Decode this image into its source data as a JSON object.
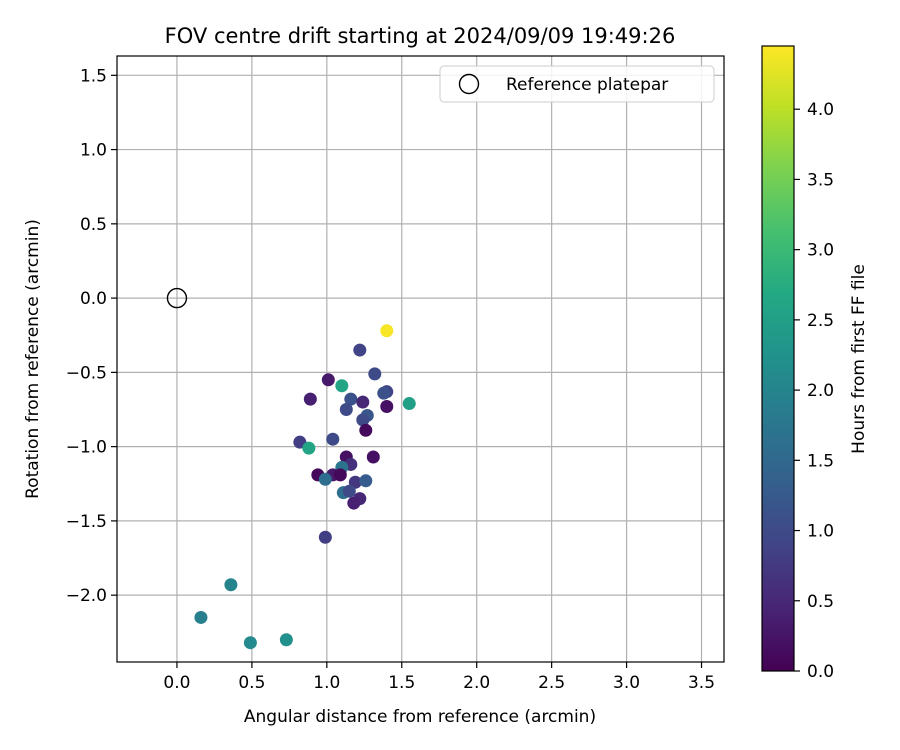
{
  "chart_data": {
    "type": "scatter",
    "title": "FOV centre drift starting at 2024/09/09 19:49:26",
    "xlabel": "Angular distance from reference (arcmin)",
    "ylabel": "Rotation from reference (arcmin)",
    "xlim": [
      -0.4,
      3.65
    ],
    "ylim": [
      -2.45,
      1.63
    ],
    "xticks": [
      0.0,
      0.5,
      1.0,
      1.5,
      2.0,
      2.5,
      3.0,
      3.5
    ],
    "yticks": [
      -2.0,
      -1.5,
      -1.0,
      -0.5,
      0.0,
      0.5,
      1.0,
      1.5
    ],
    "grid": true,
    "legend": {
      "placement": "top-right",
      "entries": [
        "Reference platepar"
      ]
    },
    "reference_point": {
      "x": 0.0,
      "y": 0.0
    },
    "colorbar": {
      "label": "Hours from first FF file",
      "colormap": "viridis",
      "range": [
        0.0,
        4.45
      ],
      "ticks": [
        0.0,
        0.5,
        1.0,
        1.5,
        2.0,
        2.5,
        3.0,
        3.5,
        4.0
      ]
    },
    "points": [
      {
        "x": 1.4,
        "y": -0.22,
        "hours": 4.4
      },
      {
        "x": 1.22,
        "y": -0.35,
        "hours": 0.9
      },
      {
        "x": 1.32,
        "y": -0.51,
        "hours": 1.0
      },
      {
        "x": 1.01,
        "y": -0.55,
        "hours": 0.3
      },
      {
        "x": 1.1,
        "y": -0.59,
        "hours": 2.6
      },
      {
        "x": 1.4,
        "y": -0.63,
        "hours": 0.9
      },
      {
        "x": 1.38,
        "y": -0.64,
        "hours": 1.1
      },
      {
        "x": 0.89,
        "y": -0.68,
        "hours": 0.4
      },
      {
        "x": 1.16,
        "y": -0.68,
        "hours": 1.1
      },
      {
        "x": 1.24,
        "y": -0.7,
        "hours": 0.5
      },
      {
        "x": 1.55,
        "y": -0.71,
        "hours": 2.5
      },
      {
        "x": 1.4,
        "y": -0.73,
        "hours": 0.2
      },
      {
        "x": 1.13,
        "y": -0.75,
        "hours": 1.0
      },
      {
        "x": 1.27,
        "y": -0.79,
        "hours": 1.2
      },
      {
        "x": 1.24,
        "y": -0.82,
        "hours": 1.0
      },
      {
        "x": 1.26,
        "y": -0.89,
        "hours": 0.1
      },
      {
        "x": 1.04,
        "y": -0.95,
        "hours": 1.0
      },
      {
        "x": 0.82,
        "y": -0.97,
        "hours": 0.8
      },
      {
        "x": 0.88,
        "y": -1.01,
        "hours": 2.6
      },
      {
        "x": 1.13,
        "y": -1.07,
        "hours": 0.2
      },
      {
        "x": 1.31,
        "y": -1.07,
        "hours": 0.2
      },
      {
        "x": 1.16,
        "y": -1.12,
        "hours": 0.6
      },
      {
        "x": 1.1,
        "y": -1.14,
        "hours": 1.7
      },
      {
        "x": 0.94,
        "y": -1.19,
        "hours": 0.1
      },
      {
        "x": 1.04,
        "y": -1.19,
        "hours": 0.3
      },
      {
        "x": 1.09,
        "y": -1.19,
        "hours": 0.1
      },
      {
        "x": 0.99,
        "y": -1.22,
        "hours": 1.6
      },
      {
        "x": 1.19,
        "y": -1.24,
        "hours": 0.7
      },
      {
        "x": 1.26,
        "y": -1.23,
        "hours": 1.3
      },
      {
        "x": 1.11,
        "y": -1.31,
        "hours": 1.6
      },
      {
        "x": 1.15,
        "y": -1.3,
        "hours": 1.0
      },
      {
        "x": 1.22,
        "y": -1.35,
        "hours": 0.5
      },
      {
        "x": 1.18,
        "y": -1.38,
        "hours": 0.4
      },
      {
        "x": 0.99,
        "y": -1.61,
        "hours": 0.8
      },
      {
        "x": 0.36,
        "y": -1.93,
        "hours": 2.0
      },
      {
        "x": 0.16,
        "y": -2.15,
        "hours": 1.9
      },
      {
        "x": 0.49,
        "y": -2.32,
        "hours": 2.1
      },
      {
        "x": 0.73,
        "y": -2.3,
        "hours": 2.2
      }
    ]
  }
}
